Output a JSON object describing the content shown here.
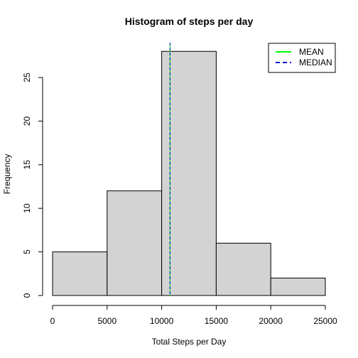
{
  "chart_data": {
    "type": "bar",
    "title": "Histogram of steps per day",
    "xlabel": "Total Steps per Day",
    "ylabel": "Frequency",
    "bins": [
      {
        "from": 0,
        "to": 5000,
        "count": 5
      },
      {
        "from": 5000,
        "to": 10000,
        "count": 12
      },
      {
        "from": 10000,
        "to": 15000,
        "count": 28
      },
      {
        "from": 15000,
        "to": 20000,
        "count": 6
      },
      {
        "from": 20000,
        "to": 25000,
        "count": 2
      }
    ],
    "xlim": [
      0,
      25000
    ],
    "ylim": [
      0,
      29
    ],
    "x_ticks": [
      0,
      5000,
      10000,
      15000,
      20000,
      25000
    ],
    "y_ticks": [
      0,
      5,
      10,
      15,
      20,
      25
    ],
    "bar_fill": "#d3d3d3",
    "reference_lines": [
      {
        "name": "MEAN",
        "value": 10766,
        "color": "#00ff00",
        "style": "solid"
      },
      {
        "name": "MEDIAN",
        "value": 10766,
        "color": "#0000cd",
        "style": "dashed"
      }
    ],
    "legend": {
      "position": "top-right",
      "entries": [
        {
          "label": "MEAN",
          "color": "#00ff00",
          "style": "solid"
        },
        {
          "label": "MEDIAN",
          "color": "#0000cd",
          "style": "dashed"
        }
      ]
    }
  }
}
